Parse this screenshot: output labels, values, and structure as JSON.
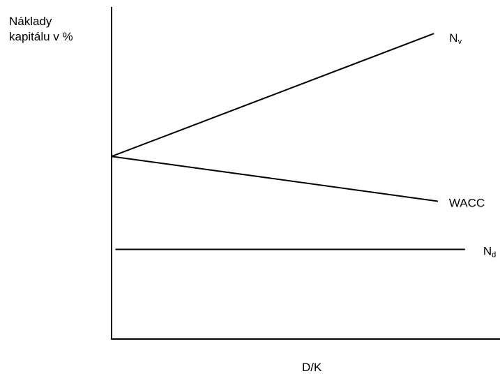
{
  "chart_data": {
    "type": "line",
    "ylabel_line1": "Náklady",
    "ylabel_line2": "kapitálu v %",
    "xlabel": "D/K",
    "grid": false,
    "legend": "none",
    "xlim": [
      0,
      1
    ],
    "ylim": [
      0,
      1
    ],
    "series": [
      {
        "name_main": "N",
        "name_sub": "v",
        "points": [
          [
            0,
            0.55
          ],
          [
            0.83,
            0.92
          ]
        ]
      },
      {
        "name_main": "WACC",
        "name_sub": "",
        "points": [
          [
            0,
            0.55
          ],
          [
            0.84,
            0.415
          ]
        ]
      },
      {
        "name_main": "N",
        "name_sub": "d",
        "points": [
          [
            0.01,
            0.27
          ],
          [
            0.91,
            0.27
          ]
        ]
      }
    ],
    "color": "#000000"
  }
}
